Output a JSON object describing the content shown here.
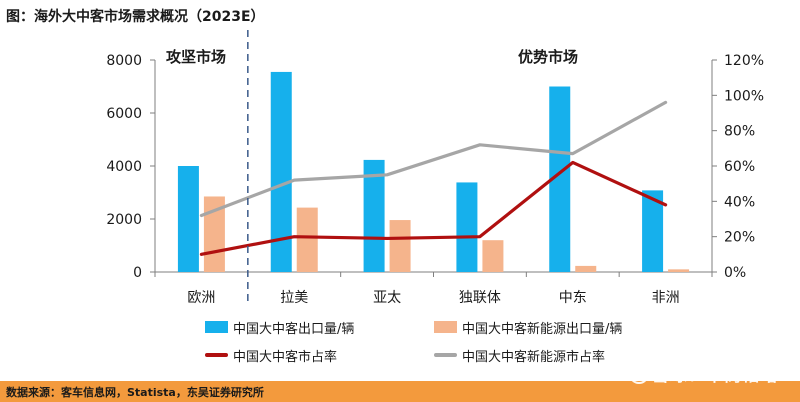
{
  "title": "图：海外大中客市场需求概况（2023E）",
  "source": "数据来源：客车信息网，Statista，东吴证券研究所",
  "watermark": "雪球：华商韬略",
  "annotations": {
    "left": "攻坚市场",
    "right": "优势市场"
  },
  "colors": {
    "bar_export": "#16b0ec",
    "bar_ne_export": "#f5b48c",
    "line_share": "#b01010",
    "line_ne_share": "#a6a6a6",
    "footer": "#f39a3d",
    "divider": "#3b5a8a"
  },
  "chart_data": {
    "type": "bar",
    "categories": [
      "欧洲",
      "拉美",
      "亚太",
      "独联体",
      "中东",
      "非洲"
    ],
    "y_left": {
      "min": 0,
      "max": 8000,
      "ticks": [
        0,
        2000,
        4000,
        6000,
        8000
      ]
    },
    "y_right": {
      "min": 0,
      "max": 1.2,
      "ticks": [
        0,
        0.2,
        0.4,
        0.6,
        0.8,
        1.0,
        1.2
      ],
      "tick_labels": [
        "0%",
        "20%",
        "40%",
        "60%",
        "80%",
        "100%",
        "120%"
      ]
    },
    "series": [
      {
        "name": "中国大中客出口量/辆",
        "type": "bar",
        "axis": "left",
        "values": [
          4000,
          7550,
          4230,
          3380,
          7000,
          3080
        ]
      },
      {
        "name": "中国大中客新能源出口量/辆",
        "type": "bar",
        "axis": "left",
        "values": [
          2850,
          2430,
          1960,
          1200,
          230,
          100
        ]
      },
      {
        "name": "中国大中客市占率",
        "type": "line",
        "axis": "right",
        "values": [
          0.1,
          0.2,
          0.19,
          0.2,
          0.62,
          0.38
        ]
      },
      {
        "name": "中国大中客新能源市占率",
        "type": "line",
        "axis": "right",
        "values": [
          0.32,
          0.52,
          0.55,
          0.72,
          0.67,
          0.96
        ]
      }
    ],
    "divider_after_category": 0,
    "grid": false,
    "legend_position": "bottom"
  }
}
